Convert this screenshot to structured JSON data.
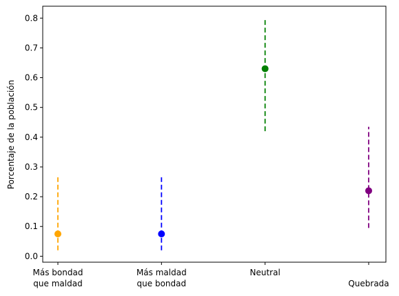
{
  "chart_data": {
    "type": "errorbar",
    "title": "",
    "xlabel": "",
    "ylabel": "Porcentaje de la población",
    "ylim": [
      -0.02,
      0.84
    ],
    "grid": false,
    "categories": [
      "Más bondad\nque maldad",
      "Más maldad\nque bondad",
      "Neutral",
      "\nQuebrada"
    ],
    "yticks": [
      "0.0",
      "0.1",
      "0.2",
      "0.3",
      "0.4",
      "0.5",
      "0.6",
      "0.7",
      "0.8"
    ],
    "yticks_values": [
      0.0,
      0.1,
      0.2,
      0.3,
      0.4,
      0.5,
      0.6,
      0.7,
      0.8
    ],
    "points": [
      {
        "category": "Más bondad\nque maldad",
        "value": 0.075,
        "lower": 0.02,
        "upper": 0.265,
        "color": "#ffa500"
      },
      {
        "category": "Más maldad\nque bondad",
        "value": 0.075,
        "lower": 0.02,
        "upper": 0.265,
        "color": "#0000ff"
      },
      {
        "category": "Neutral",
        "value": 0.63,
        "lower": 0.42,
        "upper": 0.8,
        "color": "#008000"
      },
      {
        "category": "\nQuebrada",
        "value": 0.22,
        "lower": 0.095,
        "upper": 0.435,
        "color": "#800080"
      }
    ]
  }
}
